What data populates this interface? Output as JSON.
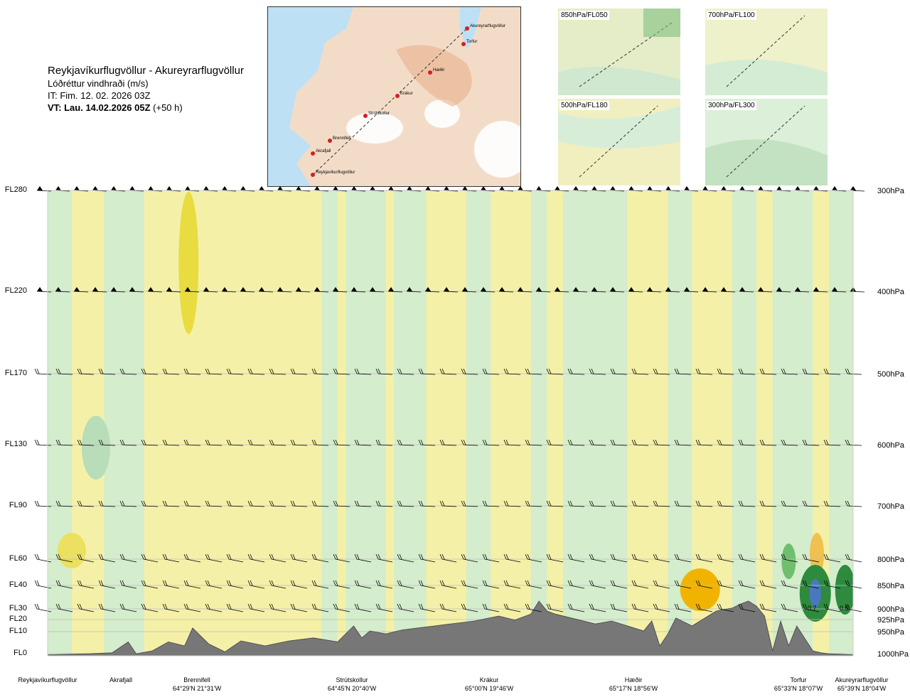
{
  "header": {
    "route": "Reykjavíkurflugvöllur - Akureyrarflugvöllur",
    "parameter": "Lóðréttur vindhraði (m/s)",
    "it_line": "IT: Fim. 12. 02. 2026 03Z",
    "vt_bold": "VT: Lau. 14.02.2026 05Z",
    "vt_offset": "(+50 h)"
  },
  "map": {
    "points": [
      "Akureyrarflugvöllur",
      "Torfur",
      "Hæðir",
      "Krákur",
      "Strútskollur",
      "Brennifell",
      "Akrafjall",
      "Reykjavíkurflugvöllur"
    ]
  },
  "panels": [
    "850hPa/FL050",
    "700hPa/FL100",
    "500hPa/FL180",
    "300hPa/FL300"
  ],
  "colors": {
    "strong_sink": "#f0b400",
    "mild_sink": "#f5f0a8",
    "neutral": "#ffffff",
    "mild_lift": "#d0ecd0",
    "strong_lift": "#2e8b3e",
    "terrain": "#777777"
  },
  "chart_data": {
    "type": "heatmap",
    "title": "Reykjavíkurflugvöllur - Akureyrarflugvöllur",
    "y_left_labels": [
      "FL280",
      "FL220",
      "FL170",
      "FL130",
      "FL90",
      "FL60",
      "FL40",
      "FL30",
      "FL20",
      "FL10",
      "FL0"
    ],
    "y_right_labels": [
      "300hPa",
      "400hPa",
      "500hPa",
      "600hPa",
      "700hPa",
      "800hPa",
      "850hPa",
      "900hPa",
      "925hPa",
      "950hPa",
      "1000hPa"
    ],
    "pressure_levels_hpa": [
      300,
      400,
      500,
      600,
      700,
      800,
      850,
      900,
      925,
      950,
      1000
    ],
    "x_locations": [
      {
        "name": "Reykjavíkurflugvöllur",
        "coord": ""
      },
      {
        "name": "Akrafjall",
        "coord": ""
      },
      {
        "name": "Brennifell",
        "coord": "64°29'N 21°31'W"
      },
      {
        "name": "Strútskollur",
        "coord": "64°45'N 20°40'W"
      },
      {
        "name": "Krákur",
        "coord": "65°00'N 19°46'W"
      },
      {
        "name": "Hæðir",
        "coord": "65°17'N 18°56'W"
      },
      {
        "name": "Torfur",
        "coord": "65°33'N 18°07'W"
      },
      {
        "name": "Akureyrarflugvöllur",
        "coord": "65°39'N 18°04'W"
      }
    ],
    "annotations": [
      "0.7",
      "0.6"
    ],
    "x_range": [
      0,
      1
    ],
    "terrain_profile": {
      "x": [
        0.0,
        0.05,
        0.08,
        0.1,
        0.11,
        0.13,
        0.15,
        0.17,
        0.18,
        0.2,
        0.22,
        0.24,
        0.27,
        0.3,
        0.33,
        0.36,
        0.38,
        0.39,
        0.4,
        0.42,
        0.44,
        0.46,
        0.48,
        0.5,
        0.53,
        0.56,
        0.58,
        0.6,
        0.61,
        0.62,
        0.63,
        0.65,
        0.68,
        0.7,
        0.72,
        0.74,
        0.75,
        0.76,
        0.77,
        0.78,
        0.8,
        0.83,
        0.85,
        0.86,
        0.87,
        0.88,
        0.89,
        0.9,
        0.91,
        0.92,
        0.93,
        0.95,
        0.96,
        0.97,
        1.0
      ],
      "h": [
        0.01,
        0.02,
        0.03,
        0.14,
        0.02,
        0.05,
        0.14,
        0.1,
        0.28,
        0.12,
        0.04,
        0.15,
        0.1,
        0.15,
        0.18,
        0.14,
        0.3,
        0.18,
        0.25,
        0.22,
        0.26,
        0.28,
        0.3,
        0.32,
        0.35,
        0.4,
        0.36,
        0.42,
        0.55,
        0.45,
        0.42,
        0.38,
        0.32,
        0.35,
        0.3,
        0.25,
        0.35,
        0.1,
        0.22,
        0.38,
        0.3,
        0.45,
        0.48,
        0.52,
        0.55,
        0.5,
        0.4,
        0.05,
        0.35,
        0.1,
        0.3,
        0.05,
        0.03,
        0.02,
        0.01
      ]
    },
    "grid": true,
    "legend": "none"
  }
}
